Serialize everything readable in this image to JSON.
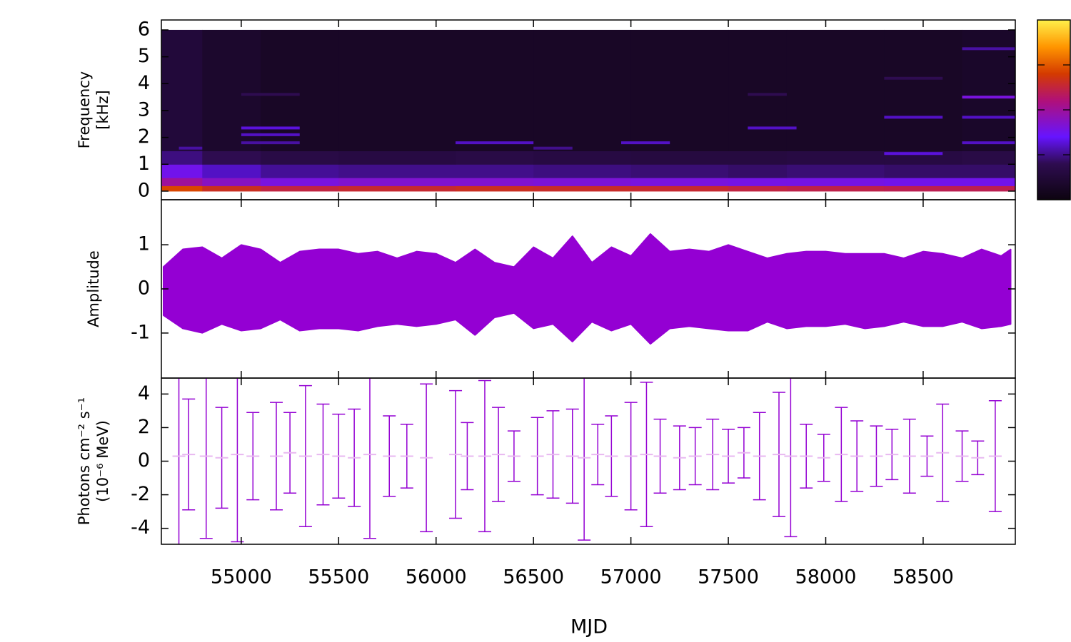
{
  "chart_data": [
    {
      "type": "heatmap",
      "ylabel": [
        "Frequency",
        "[kHz]"
      ],
      "xlim": [
        54590,
        58973
      ],
      "xticks": [
        55000,
        55500,
        56000,
        56500,
        57000,
        57500,
        58000,
        58500
      ],
      "ylim": [
        -0.32,
        6.37
      ],
      "yticks": [
        0,
        1,
        2,
        3,
        4,
        5,
        6
      ],
      "x_edges": [
        54590,
        54800,
        55100,
        55500,
        56100,
        56500,
        57000,
        57500,
        57800,
        58300,
        58700,
        58973
      ],
      "y_edges": [
        0,
        0.2,
        0.5,
        1,
        1.5,
        6
      ],
      "z": [
        [
          0.72,
          0.66,
          0.62,
          0.64,
          0.66,
          0.65,
          0.64,
          0.62,
          0.61,
          0.6,
          0.6
        ],
        [
          0.5,
          0.44,
          0.4,
          0.42,
          0.42,
          0.41,
          0.4,
          0.39,
          0.39,
          0.38,
          0.38
        ],
        [
          0.38,
          0.3,
          0.26,
          0.25,
          0.25,
          0.24,
          0.23,
          0.22,
          0.23,
          0.22,
          0.22
        ],
        [
          0.24,
          0.2,
          0.17,
          0.16,
          0.17,
          0.16,
          0.15,
          0.15,
          0.16,
          0.16,
          0.17
        ],
        [
          0.13,
          0.09,
          0.07,
          0.07,
          0.07,
          0.07,
          0.07,
          0.07,
          0.07,
          0.07,
          0.08
        ]
      ],
      "lines": [
        {
          "x0": 55000,
          "x1": 55300,
          "y": 2.35,
          "z": 0.32
        },
        {
          "x0": 55000,
          "x1": 55300,
          "y": 2.1,
          "z": 0.3
        },
        {
          "x0": 55000,
          "x1": 55300,
          "y": 1.8,
          "z": 0.27
        },
        {
          "x0": 55000,
          "x1": 55300,
          "y": 3.6,
          "z": 0.2
        },
        {
          "x0": 54680,
          "x1": 54800,
          "y": 1.6,
          "z": 0.27
        },
        {
          "x0": 56100,
          "x1": 56500,
          "y": 1.8,
          "z": 0.3
        },
        {
          "x0": 56500,
          "x1": 56700,
          "y": 1.6,
          "z": 0.25
        },
        {
          "x0": 56950,
          "x1": 57200,
          "y": 1.8,
          "z": 0.3
        },
        {
          "x0": 57600,
          "x1": 57800,
          "y": 3.6,
          "z": 0.2
        },
        {
          "x0": 57600,
          "x1": 57850,
          "y": 2.35,
          "z": 0.3
        },
        {
          "x0": 58300,
          "x1": 58600,
          "y": 2.75,
          "z": 0.3
        },
        {
          "x0": 58300,
          "x1": 58600,
          "y": 4.2,
          "z": 0.2
        },
        {
          "x0": 58300,
          "x1": 58600,
          "y": 1.4,
          "z": 0.32
        },
        {
          "x0": 58700,
          "x1": 58973,
          "y": 3.5,
          "z": 0.4
        },
        {
          "x0": 58700,
          "x1": 58973,
          "y": 2.75,
          "z": 0.3
        },
        {
          "x0": 58700,
          "x1": 58973,
          "y": 5.3,
          "z": 0.27
        },
        {
          "x0": 58700,
          "x1": 58973,
          "y": 1.8,
          "z": 0.3
        }
      ],
      "zlim": [
        0,
        1
      ],
      "zticks": [
        0.25,
        0.5,
        0.75
      ],
      "colormap": [
        [
          0,
          "#0d0410"
        ],
        [
          0.2,
          "#2e0c50"
        ],
        [
          0.35,
          "#6614ff"
        ],
        [
          0.55,
          "#b0107a"
        ],
        [
          0.7,
          "#d43a00"
        ],
        [
          0.85,
          "#ff9500"
        ],
        [
          1,
          "#fff04a"
        ]
      ]
    },
    {
      "type": "envelope",
      "ylabel": [
        "Amplitude"
      ],
      "color": "#9400d3",
      "xlim": [
        54590,
        58973
      ],
      "xticks": [
        55000,
        55500,
        56000,
        56500,
        57000,
        57500,
        58000,
        58500
      ],
      "ylim": [
        -2.02,
        2.02
      ],
      "yticks": [
        -1,
        0,
        1
      ],
      "x": [
        54600,
        54700,
        54800,
        54900,
        55000,
        55100,
        55200,
        55300,
        55400,
        55500,
        55600,
        55700,
        55800,
        55900,
        56000,
        56100,
        56200,
        56300,
        56400,
        56500,
        56600,
        56700,
        56800,
        56900,
        57000,
        57100,
        57200,
        57300,
        57400,
        57500,
        57600,
        57700,
        57800,
        57900,
        58000,
        58100,
        58200,
        58300,
        58400,
        58500,
        58600,
        58700,
        58800,
        58900,
        58950
      ],
      "upper": [
        0.5,
        0.9,
        0.95,
        0.7,
        1.0,
        0.9,
        0.6,
        0.85,
        0.9,
        0.9,
        0.8,
        0.85,
        0.7,
        0.85,
        0.8,
        0.6,
        0.9,
        0.6,
        0.5,
        0.95,
        0.7,
        1.2,
        0.6,
        0.95,
        0.75,
        1.25,
        0.85,
        0.9,
        0.85,
        1.0,
        0.85,
        0.7,
        0.8,
        0.85,
        0.85,
        0.8,
        0.8,
        0.8,
        0.7,
        0.85,
        0.8,
        0.7,
        0.9,
        0.75,
        0.9
      ],
      "lower": [
        -0.6,
        -0.9,
        -1.0,
        -0.8,
        -0.95,
        -0.9,
        -0.7,
        -0.95,
        -0.9,
        -0.9,
        -0.95,
        -0.85,
        -0.8,
        -0.85,
        -0.8,
        -0.7,
        -1.05,
        -0.65,
        -0.55,
        -0.9,
        -0.8,
        -1.2,
        -0.75,
        -0.95,
        -0.8,
        -1.25,
        -0.9,
        -0.85,
        -0.9,
        -0.95,
        -0.95,
        -0.75,
        -0.9,
        -0.85,
        -0.85,
        -0.8,
        -0.9,
        -0.85,
        -0.75,
        -0.85,
        -0.85,
        -0.75,
        -0.9,
        -0.85,
        -0.8
      ]
    },
    {
      "type": "errorbar",
      "ylabel": [
        "Photons cm⁻² s⁻¹",
        "(10⁻⁶ MeV)"
      ],
      "xlabel": "MJD",
      "color": "#9400d3",
      "xlim": [
        54590,
        58973
      ],
      "xticks": [
        55000,
        55500,
        56000,
        56500,
        57000,
        57500,
        58000,
        58500
      ],
      "ylim": [
        -4.95,
        4.95
      ],
      "yticks": [
        -4,
        -2,
        0,
        2,
        4
      ],
      "x": [
        54680,
        54730,
        54820,
        54900,
        54980,
        55060,
        55180,
        55250,
        55330,
        55420,
        55500,
        55580,
        55660,
        55760,
        55850,
        55950,
        56100,
        56160,
        56250,
        56320,
        56400,
        56520,
        56600,
        56700,
        56760,
        56830,
        56900,
        57000,
        57080,
        57150,
        57250,
        57330,
        57420,
        57500,
        57580,
        57660,
        57760,
        57820,
        57900,
        57990,
        58080,
        58160,
        58260,
        58340,
        58430,
        58520,
        58600,
        58700,
        58780,
        58870
      ],
      "values": [
        0.3,
        0.4,
        0.3,
        0.2,
        0.4,
        0.3,
        0.3,
        0.5,
        0.3,
        0.4,
        0.3,
        0.2,
        0.4,
        0.3,
        0.3,
        0.2,
        0.4,
        0.3,
        0.3,
        0.4,
        0.3,
        0.3,
        0.4,
        0.3,
        0.2,
        0.4,
        0.3,
        0.3,
        0.4,
        0.3,
        0.2,
        0.3,
        0.4,
        0.3,
        0.5,
        0.3,
        0.4,
        0.3,
        0.3,
        0.2,
        0.4,
        0.3,
        0.3,
        0.4,
        0.3,
        0.3,
        0.5,
        0.3,
        0.2,
        0.3
      ],
      "errors": [
        5.5,
        3.3,
        4.9,
        3.0,
        5.2,
        2.6,
        3.2,
        2.4,
        4.2,
        3.0,
        2.5,
        2.9,
        5.0,
        2.4,
        1.9,
        4.4,
        3.8,
        2.0,
        4.5,
        2.8,
        1.5,
        2.3,
        2.6,
        2.8,
        4.9,
        1.8,
        2.4,
        3.2,
        4.3,
        2.2,
        1.9,
        1.7,
        2.1,
        1.6,
        1.5,
        2.6,
        3.7,
        4.8,
        1.9,
        1.4,
        2.8,
        2.1,
        1.8,
        1.5,
        2.2,
        1.2,
        2.9,
        1.5,
        1.0,
        3.3
      ]
    }
  ]
}
